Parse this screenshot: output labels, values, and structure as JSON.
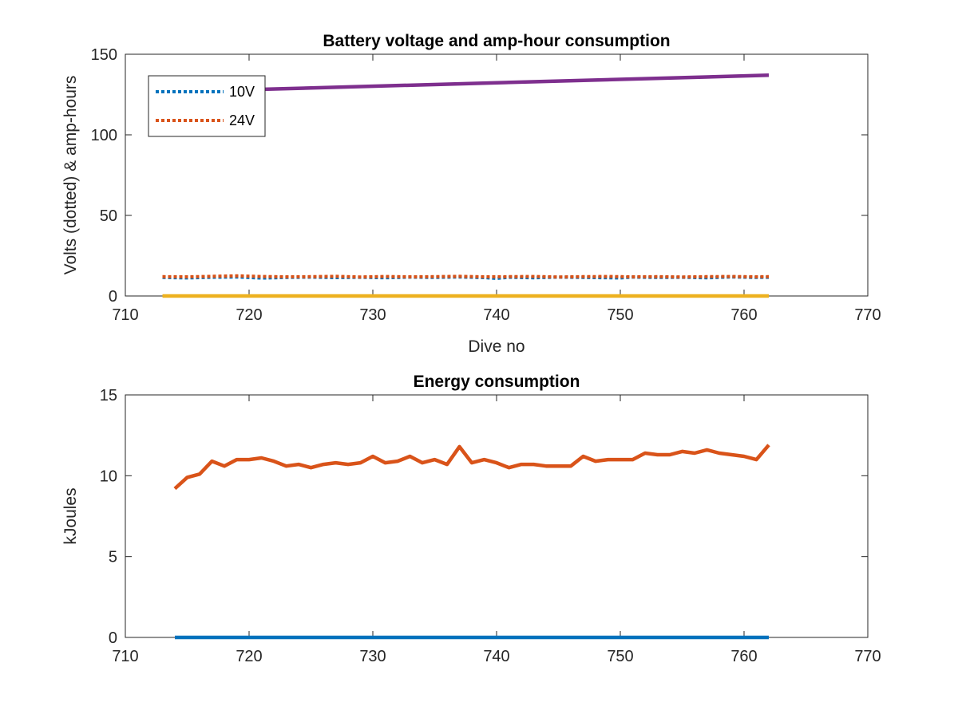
{
  "chart_data": [
    {
      "type": "line",
      "title": "Battery voltage and amp-hour consumption",
      "xlabel": "Dive no",
      "ylabel": "Volts (dotted) & amp-hours",
      "xlim": [
        710,
        770
      ],
      "ylim": [
        0,
        150
      ],
      "xticks": [
        710,
        720,
        730,
        740,
        750,
        760,
        770
      ],
      "yticks": [
        0,
        50,
        100,
        150
      ],
      "grid": false,
      "legend_position": "top-left",
      "series": [
        {
          "name": "10V",
          "style": "dotted",
          "color": "#0072BD",
          "x": [
            713,
            715,
            717,
            719,
            721,
            723,
            725,
            727,
            729,
            731,
            733,
            735,
            737,
            739,
            740,
            741,
            743,
            745,
            747,
            749,
            750,
            751,
            753,
            755,
            757,
            759,
            761,
            762
          ],
          "y": [
            11.5,
            11.2,
            11.6,
            11.8,
            11.1,
            11.5,
            11.7,
            11.4,
            11.6,
            11.3,
            11.7,
            11.5,
            11.8,
            11.4,
            10.9,
            11.6,
            11.3,
            11.7,
            11.5,
            11.3,
            11.2,
            11.7,
            11.5,
            11.6,
            11.3,
            11.8,
            11.5,
            11.6
          ]
        },
        {
          "name": "24V",
          "style": "dotted",
          "color": "#D95319",
          "x": [
            713,
            715,
            717,
            719,
            721,
            723,
            725,
            727,
            729,
            731,
            733,
            735,
            737,
            739,
            741,
            743,
            745,
            747,
            749,
            751,
            753,
            755,
            757,
            759,
            761,
            762
          ],
          "y": [
            12.0,
            11.9,
            12.2,
            12.5,
            12.1,
            11.9,
            12.0,
            12.2,
            11.8,
            12.1,
            11.9,
            12.0,
            12.2,
            11.9,
            12.0,
            12.1,
            11.8,
            12.0,
            12.1,
            11.9,
            12.0,
            11.8,
            12.0,
            12.1,
            11.9,
            12.0
          ]
        },
        {
          "style": "solid",
          "color": "#EDB120",
          "x": [
            713,
            762
          ],
          "y": [
            0,
            0
          ]
        },
        {
          "style": "solid",
          "color": "#7E2F8E",
          "x": [
            720,
            762
          ],
          "y": [
            128,
            137
          ]
        }
      ]
    },
    {
      "type": "line",
      "title": "Energy consumption",
      "xlabel": "",
      "ylabel": "kJoules",
      "xlim": [
        710,
        770
      ],
      "ylim": [
        0,
        15
      ],
      "xticks": [
        710,
        720,
        730,
        740,
        750,
        760,
        770
      ],
      "yticks": [
        0,
        5,
        10,
        15
      ],
      "grid": false,
      "series": [
        {
          "style": "solid",
          "color": "#D95319",
          "x": [
            714,
            715,
            716,
            717,
            718,
            719,
            720,
            721,
            722,
            723,
            724,
            725,
            726,
            727,
            728,
            729,
            730,
            731,
            732,
            733,
            734,
            735,
            736,
            737,
            738,
            739,
            740,
            741,
            742,
            743,
            744,
            745,
            746,
            747,
            748,
            749,
            750,
            751,
            752,
            753,
            754,
            755,
            756,
            757,
            758,
            759,
            760,
            761,
            762
          ],
          "y": [
            9.2,
            9.9,
            10.1,
            10.9,
            10.6,
            11.0,
            11.0,
            11.1,
            10.9,
            10.6,
            10.7,
            10.5,
            10.7,
            10.8,
            10.7,
            10.8,
            11.2,
            10.8,
            10.9,
            11.2,
            10.8,
            11.0,
            10.7,
            11.8,
            10.8,
            11.0,
            10.8,
            10.5,
            10.7,
            10.7,
            10.6,
            10.6,
            10.6,
            11.2,
            10.9,
            11.0,
            11.0,
            11.0,
            11.4,
            11.3,
            11.3,
            11.5,
            11.4,
            11.6,
            11.4,
            11.3,
            11.2,
            11.0,
            11.9
          ]
        },
        {
          "style": "solid",
          "color": "#0072BD",
          "x": [
            714,
            762
          ],
          "y": [
            0,
            0
          ]
        }
      ]
    }
  ]
}
